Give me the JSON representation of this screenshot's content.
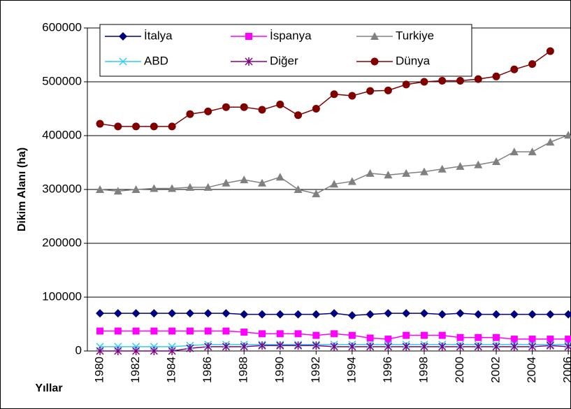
{
  "chart_data": {
    "type": "line",
    "ylabel": "Dikim Alanı (ha)",
    "xlabel": "Yıllar",
    "x": [
      1980,
      1981,
      1982,
      1983,
      1984,
      1985,
      1986,
      1987,
      1988,
      1989,
      1990,
      1991,
      1992,
      1993,
      1994,
      1995,
      1996,
      1997,
      1998,
      1999,
      2000,
      2001,
      2002,
      2003,
      2004,
      2005,
      2006
    ],
    "xlim": [
      1979.3,
      2006.15
    ],
    "xticks": [
      1980,
      1982,
      1984,
      1986,
      1988,
      1990,
      1992,
      1994,
      1996,
      1998,
      2000,
      2002,
      2004,
      2006
    ],
    "ylim": [
      0,
      600000
    ],
    "yticks": [
      0,
      100000,
      200000,
      300000,
      400000,
      500000,
      600000
    ],
    "grid": true,
    "legend": "top",
    "series": [
      {
        "name": "İtalya",
        "color": "#000080",
        "marker": "diamond",
        "values": [
          70000,
          70000,
          70000,
          70000,
          70000,
          70000,
          70000,
          70000,
          68000,
          68000,
          68000,
          68000,
          68000,
          70000,
          66000,
          68000,
          70000,
          70000,
          70000,
          68000,
          70000,
          68000,
          68000,
          68000,
          68000,
          68000,
          68000
        ]
      },
      {
        "name": "İspanya",
        "color": "#ff00ff",
        "marker": "square",
        "values": [
          37000,
          37000,
          37000,
          37000,
          37000,
          37000,
          37000,
          37000,
          35000,
          32000,
          32000,
          32000,
          29000,
          32000,
          29000,
          24000,
          22000,
          29000,
          29000,
          29000,
          25000,
          25000,
          25000,
          22000,
          22000,
          22000,
          22000
        ]
      },
      {
        "name": "Turkiye",
        "color": "#808080",
        "marker": "triangle",
        "values": [
          300000,
          297000,
          300000,
          302000,
          302000,
          304000,
          304000,
          312000,
          318000,
          312000,
          323000,
          300000,
          292000,
          310000,
          315000,
          330000,
          327000,
          330000,
          333000,
          338000,
          343000,
          346000,
          352000,
          370000,
          370000,
          388000,
          401000
        ]
      },
      {
        "name": "ABD",
        "color": "#33ccff",
        "marker": "x",
        "values": [
          8000,
          8000,
          8000,
          8000,
          8000,
          10000,
          12000,
          12000,
          12000,
          12000,
          12000,
          12000,
          12000,
          12000,
          12000,
          12000,
          12000,
          12000,
          12000,
          12000,
          12000,
          12000,
          12000,
          12000,
          12000,
          12000,
          12000
        ]
      },
      {
        "name": "Diğer",
        "color": "#800080",
        "marker": "star",
        "values": [
          0,
          0,
          0,
          0,
          0,
          5000,
          8000,
          8000,
          8000,
          10000,
          10000,
          10000,
          10000,
          8000,
          8000,
          8000,
          8000,
          8000,
          8000,
          8000,
          8000,
          8000,
          8000,
          8000,
          8000,
          10000,
          8000
        ]
      },
      {
        "name": "Dünya",
        "color": "#800000",
        "marker": "circle",
        "values": [
          422000,
          417000,
          417000,
          417000,
          417000,
          440000,
          445000,
          453000,
          453000,
          448000,
          458000,
          438000,
          450000,
          477000,
          474000,
          483000,
          484000,
          495000,
          500000,
          502000,
          502000,
          505000,
          510000,
          523000,
          533000,
          557000,
          null
        ]
      }
    ]
  }
}
